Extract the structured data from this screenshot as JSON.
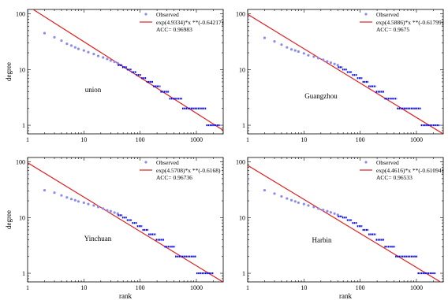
{
  "chart_data": [
    {
      "type": "scatter",
      "label": "union",
      "x_scale": "log",
      "y_scale": "log",
      "xlim": [
        1,
        3000
      ],
      "ylim": [
        0.7,
        120
      ],
      "xticks": [
        "1",
        "10",
        "100",
        "1000"
      ],
      "yticks": [
        "1",
        "10",
        "100"
      ],
      "xlabel": "",
      "ylabel": "degree",
      "legend": [
        "Observed",
        "exp(4.9334)*x **(-0.64217)",
        "ACC= 0.96983"
      ],
      "fit": {
        "a": 4.9334,
        "b": -0.64217
      },
      "series": [
        {
          "name": "Observed",
          "points": [
            [
              1,
              110
            ],
            [
              2,
              45
            ],
            [
              3,
              38
            ],
            [
              4,
              33
            ],
            [
              5,
              29
            ],
            [
              6,
              27
            ],
            [
              7,
              25
            ],
            [
              8,
              23.5
            ],
            [
              10,
              22
            ],
            [
              12,
              20.5
            ],
            [
              15,
              19
            ],
            [
              18,
              17.5
            ],
            [
              22,
              16.5
            ],
            [
              26,
              15.5
            ],
            [
              30,
              14.5
            ],
            [
              35,
              13.7
            ],
            [
              40,
              13
            ]
          ]
        }
      ],
      "steps": [
        [
          40,
          12
        ],
        [
          48,
          11
        ],
        [
          58,
          10
        ],
        [
          70,
          9
        ],
        [
          85,
          8
        ],
        [
          105,
          7
        ],
        [
          130,
          6
        ],
        [
          170,
          5
        ],
        [
          230,
          4
        ],
        [
          330,
          3
        ],
        [
          560,
          2
        ],
        [
          1500,
          1
        ],
        [
          2600,
          1
        ]
      ]
    },
    {
      "type": "scatter",
      "label": "Guangzhou",
      "x_scale": "log",
      "y_scale": "log",
      "xlim": [
        1,
        3000
      ],
      "ylim": [
        0.7,
        120
      ],
      "xticks": [
        "1",
        "10",
        "100",
        "1000"
      ],
      "yticks": [
        "1",
        "10",
        "100"
      ],
      "xlabel": "",
      "ylabel": "",
      "legend": [
        "Observed",
        "exp(4.5886)*x **(-0.61799)",
        "ACC= 0.9675"
      ],
      "fit": {
        "a": 4.5886,
        "b": -0.61799
      },
      "series": [
        {
          "name": "Observed",
          "points": [
            [
              1,
              80
            ],
            [
              2,
              37
            ],
            [
              3,
              32
            ],
            [
              4,
              28
            ],
            [
              5,
              25
            ],
            [
              6,
              23
            ],
            [
              7,
              22
            ],
            [
              8,
              21
            ],
            [
              10,
              19.5
            ],
            [
              12,
              18
            ],
            [
              15,
              17
            ],
            [
              18,
              16
            ],
            [
              22,
              15
            ],
            [
              26,
              14
            ],
            [
              30,
              13.3
            ],
            [
              35,
              12.6
            ],
            [
              40,
              12
            ]
          ]
        }
      ],
      "steps": [
        [
          40,
          11
        ],
        [
          48,
          10
        ],
        [
          58,
          9
        ],
        [
          72,
          8
        ],
        [
          88,
          7
        ],
        [
          110,
          6
        ],
        [
          140,
          5
        ],
        [
          190,
          4
        ],
        [
          270,
          3
        ],
        [
          450,
          2
        ],
        [
          1200,
          1
        ],
        [
          2600,
          1
        ]
      ]
    },
    {
      "type": "scatter",
      "label": "Yinchuan",
      "x_scale": "log",
      "y_scale": "log",
      "xlim": [
        1,
        3000
      ],
      "ylim": [
        0.7,
        120
      ],
      "xticks": [
        "1",
        "10",
        "100",
        "1000"
      ],
      "yticks": [
        "1",
        "10",
        "100"
      ],
      "xlabel": "rank",
      "ylabel": "degree",
      "legend": [
        "Observed",
        "exp(4.5708)*x **(-0.6168)",
        "ACC= 0.96736"
      ],
      "fit": {
        "a": 4.5708,
        "b": -0.6168
      },
      "series": [
        {
          "name": "Observed",
          "points": [
            [
              1,
              60
            ],
            [
              2,
              31
            ],
            [
              3,
              28
            ],
            [
              4,
              25
            ],
            [
              5,
              23
            ],
            [
              6,
              21.5
            ],
            [
              7,
              20.5
            ],
            [
              8,
              19.5
            ],
            [
              10,
              18.5
            ],
            [
              12,
              17.5
            ],
            [
              15,
              16.5
            ],
            [
              18,
              15.5
            ],
            [
              22,
              14.5
            ],
            [
              26,
              13.5
            ],
            [
              30,
              13
            ],
            [
              35,
              12.3
            ],
            [
              40,
              11.8
            ]
          ]
        }
      ],
      "steps": [
        [
          40,
          11
        ],
        [
          48,
          10
        ],
        [
          58,
          9
        ],
        [
          72,
          8
        ],
        [
          88,
          7
        ],
        [
          110,
          6
        ],
        [
          140,
          5
        ],
        [
          190,
          4
        ],
        [
          270,
          3
        ],
        [
          420,
          2
        ],
        [
          1000,
          1
        ],
        [
          2000,
          1
        ]
      ]
    },
    {
      "type": "scatter",
      "label": "Harbin",
      "x_scale": "log",
      "y_scale": "log",
      "xlim": [
        1,
        3000
      ],
      "ylim": [
        0.7,
        120
      ],
      "xticks": [
        "1",
        "10",
        "100",
        "1000"
      ],
      "yticks": [
        "1",
        "10",
        "100"
      ],
      "xlabel": "rank",
      "ylabel": "",
      "legend": [
        "Observed",
        "exp(4.4616)*x **(-0.61094)",
        "ACC= 0.96533"
      ],
      "fit": {
        "a": 4.4616,
        "b": -0.61094
      },
      "series": [
        {
          "name": "Observed",
          "points": [
            [
              1,
              48
            ],
            [
              2,
              31
            ],
            [
              3,
              27
            ],
            [
              4,
              24
            ],
            [
              5,
              22
            ],
            [
              6,
              20.5
            ],
            [
              7,
              19.5
            ],
            [
              8,
              18.5
            ],
            [
              10,
              17.5
            ],
            [
              12,
              16.5
            ],
            [
              15,
              15.5
            ],
            [
              18,
              14.5
            ],
            [
              22,
              13.7
            ],
            [
              26,
              13
            ],
            [
              30,
              12.4
            ],
            [
              35,
              11.8
            ],
            [
              40,
              11.2
            ]
          ]
        }
      ],
      "steps": [
        [
          40,
          10.5
        ],
        [
          48,
          10
        ],
        [
          58,
          9
        ],
        [
          72,
          8
        ],
        [
          88,
          7
        ],
        [
          110,
          6
        ],
        [
          140,
          5
        ],
        [
          190,
          4
        ],
        [
          270,
          3
        ],
        [
          420,
          2
        ],
        [
          1050,
          1
        ],
        [
          2200,
          1
        ]
      ]
    }
  ],
  "colors": {
    "observed": "#8c8cf0",
    "fit": "#e02020",
    "axis": "#000000"
  }
}
